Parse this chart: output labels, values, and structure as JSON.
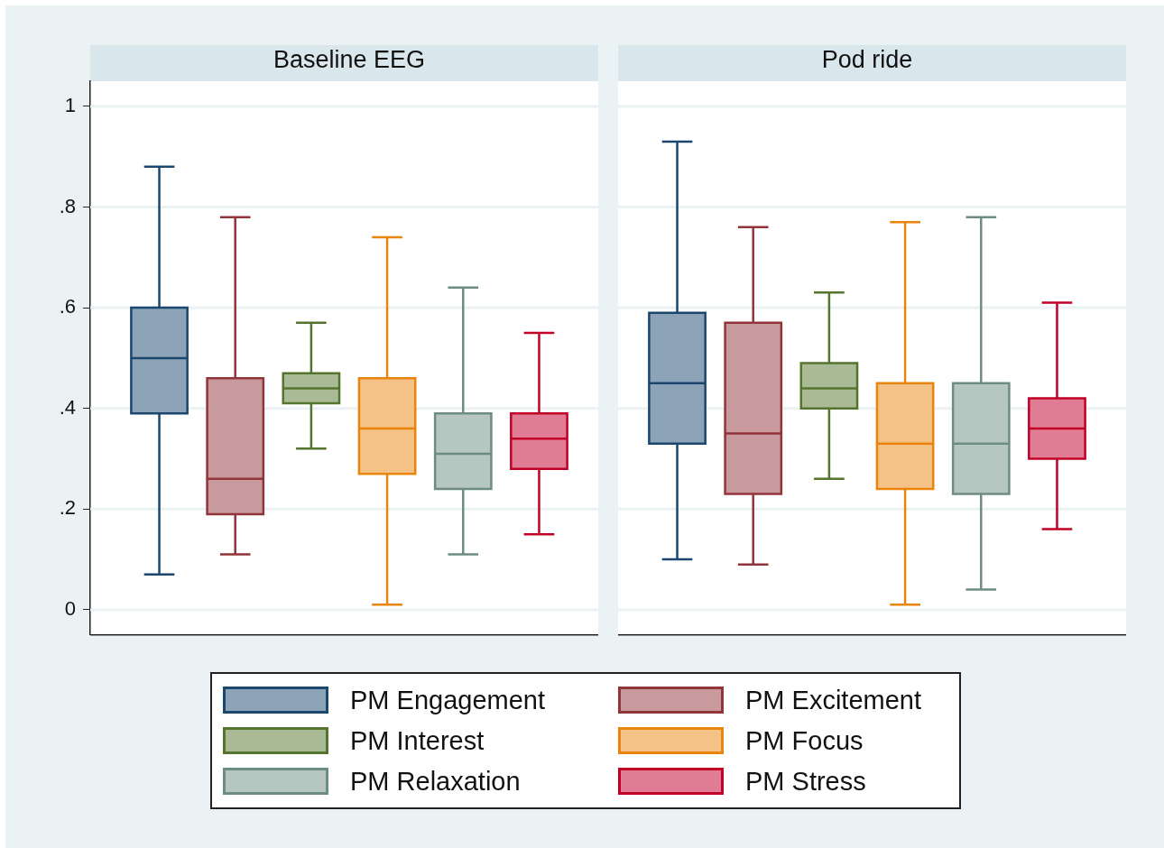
{
  "chart_data": {
    "type": "box",
    "categories": [
      "Baseline EEG",
      "Pod ride"
    ],
    "ylim": [
      -0.05,
      1.05
    ],
    "yticks": [
      {
        "value": 0,
        "label": "0"
      },
      {
        "value": 0.2,
        "label": ".2"
      },
      {
        "value": 0.4,
        "label": ".4"
      },
      {
        "value": 0.6,
        "label": ".6"
      },
      {
        "value": 0.8,
        "label": ".8"
      },
      1
    ],
    "grid": "y",
    "legend": "bottom",
    "series": [
      {
        "name": "PM Engagement",
        "color": "#8da3b7",
        "boxes": [
          {
            "low": 0.07,
            "q1": 0.39,
            "median": 0.5,
            "q3": 0.6,
            "high": 0.88
          },
          {
            "low": 0.1,
            "q1": 0.33,
            "median": 0.45,
            "q3": 0.59,
            "high": 0.93
          }
        ]
      },
      {
        "name": "PM Excitement",
        "color": "#c89a9d",
        "boxes": [
          {
            "low": 0.11,
            "q1": 0.19,
            "median": 0.26,
            "q3": 0.46,
            "high": 0.78
          },
          {
            "low": 0.09,
            "q1": 0.23,
            "median": 0.35,
            "q3": 0.57,
            "high": 0.76
          }
        ]
      },
      {
        "name": "PM Interest",
        "color": "#aaba97",
        "boxes": [
          {
            "low": 0.32,
            "q1": 0.41,
            "median": 0.44,
            "q3": 0.47,
            "high": 0.57
          },
          {
            "low": 0.26,
            "q1": 0.4,
            "median": 0.44,
            "q3": 0.49,
            "high": 0.63
          }
        ]
      },
      {
        "name": "PM Focus",
        "color": "#f4c286",
        "boxes": [
          {
            "low": 0.01,
            "q1": 0.27,
            "median": 0.36,
            "q3": 0.46,
            "high": 0.74
          },
          {
            "low": 0.01,
            "q1": 0.24,
            "median": 0.33,
            "q3": 0.45,
            "high": 0.77
          }
        ]
      },
      {
        "name": "PM Relaxation",
        "color": "#b6c6c1",
        "boxes": [
          {
            "low": 0.11,
            "q1": 0.24,
            "median": 0.31,
            "q3": 0.39,
            "high": 0.64
          },
          {
            "low": 0.04,
            "q1": 0.23,
            "median": 0.33,
            "q3": 0.45,
            "high": 0.78
          }
        ]
      },
      {
        "name": "PM Stress",
        "color": "#e07c93",
        "boxes": [
          {
            "low": 0.15,
            "q1": 0.28,
            "median": 0.34,
            "q3": 0.39,
            "high": 0.55
          },
          {
            "low": 0.16,
            "q1": 0.3,
            "median": 0.36,
            "q3": 0.42,
            "high": 0.61
          }
        ]
      }
    ]
  }
}
